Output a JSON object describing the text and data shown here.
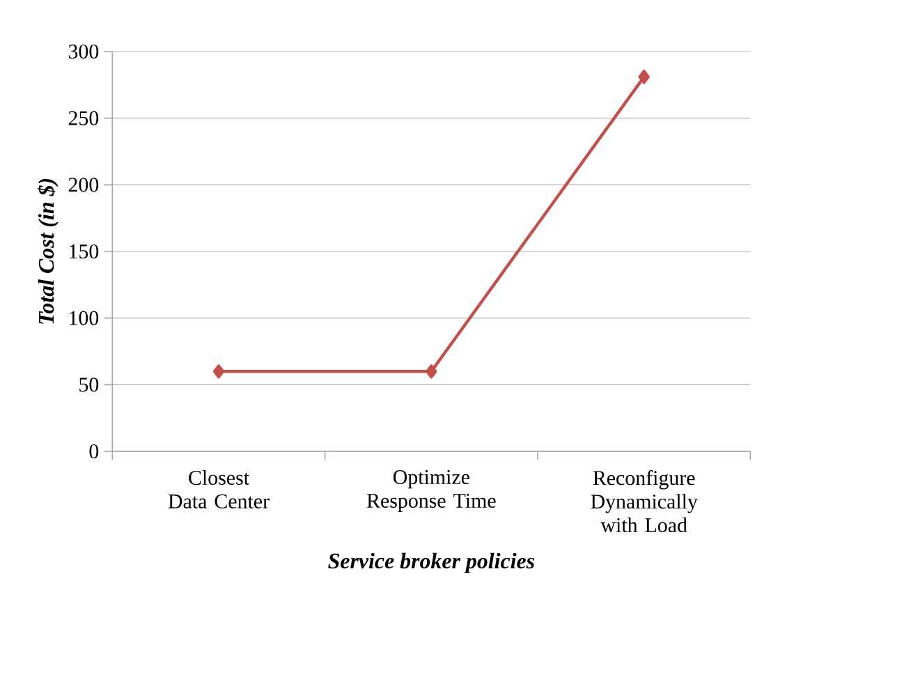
{
  "chart_data": {
    "type": "line",
    "xlabel": "Service broker policies",
    "ylabel": "Total Cost (in $)",
    "categories": [
      "Closest Data Center",
      "Optimize Response Time",
      "Reconfigure Dynamically with Load"
    ],
    "series": [
      {
        "color": "#c0504d",
        "values": [
          60,
          60,
          281
        ]
      }
    ],
    "ylim": [
      0,
      300
    ],
    "yticks": [
      0,
      50,
      100,
      150,
      200,
      250,
      300
    ],
    "grid": "y",
    "legend": false,
    "marker": "diamond",
    "line_style": "solid"
  }
}
